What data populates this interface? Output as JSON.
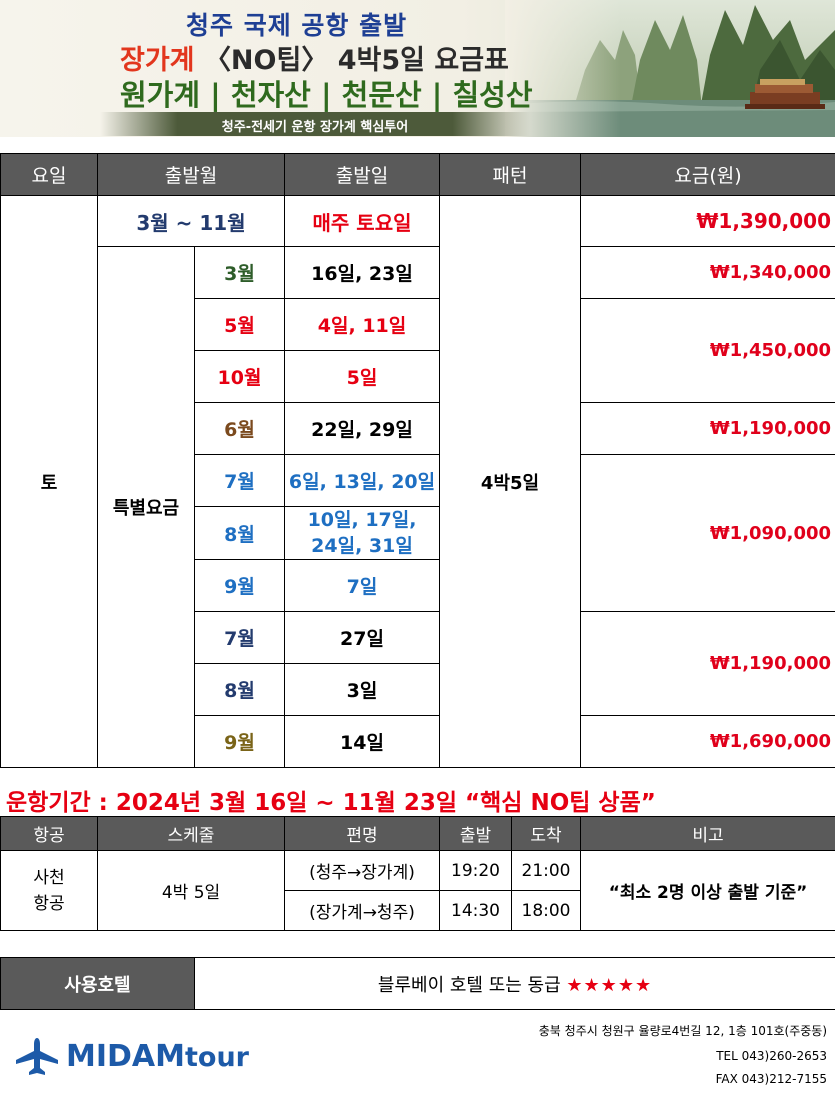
{
  "banner": {
    "line1": "청주 국제 공항 출발",
    "line2_red": "장가계",
    "line2_dark": "〈NO팁〉 4박5일 요금표",
    "line3": "원가계 | 천자산 | 천문산 | 칠성산",
    "ribbon": "청주-전세기 운항 장가계 핵심투어"
  },
  "fare_table": {
    "headers": [
      "요일",
      "출발월",
      "출발일",
      "패턴",
      "요금(원)"
    ],
    "day": "토",
    "pattern": "4박5일",
    "regular": {
      "months": "3월 ~ 11월",
      "dates": "매주 토요일",
      "price": "₩1,390,000"
    },
    "special_label": "특별요금",
    "rows": [
      {
        "month": "3월",
        "dates": "16일, 23일"
      },
      {
        "month": "5월",
        "dates": "4일, 11일"
      },
      {
        "month": "10월",
        "dates": "5일"
      },
      {
        "month": "6월",
        "dates": "22일, 29일"
      },
      {
        "month": "7월",
        "dates": "6일, 13일, 20일"
      },
      {
        "month": "8월",
        "dates": "10일, 17일, 24일, 31일"
      },
      {
        "month": "9월",
        "dates": "7일"
      },
      {
        "month": "7월",
        "dates": "27일"
      },
      {
        "month": "8월",
        "dates": "3일"
      },
      {
        "month": "9월",
        "dates": "14일"
      }
    ],
    "prices": [
      "₩1,340,000",
      "₩1,450,000",
      "₩1,190,000",
      "₩1,090,000",
      "₩1,190,000",
      "₩1,690,000"
    ]
  },
  "period_text": "운항기간 : 2024년 3월 16일 ~ 11월 23일 “핵심 NO팁 상품”",
  "flight_table": {
    "headers": [
      "항공",
      "스케줄",
      "편명",
      "출발",
      "도착",
      "비고"
    ],
    "airline_line1": "사천",
    "airline_line2": "항공",
    "schedule": "4박 5일",
    "flights": [
      {
        "route": "(청주→장가계)",
        "depart": "19:20",
        "arrive": "21:00"
      },
      {
        "route": "(장가계→청주)",
        "depart": "14:30",
        "arrive": "18:00"
      }
    ],
    "note": "“최소 2명 이상 출발 기준”"
  },
  "hotel": {
    "label": "사용호텔",
    "value": "블루베이 호텔 또는 동급",
    "stars": "★★★★★"
  },
  "footer": {
    "logo_main": "MIDAM",
    "logo_suffix": "tour",
    "address": "충북 청주시 청원구 율량로4번길 12, 1층 101호(주중동)",
    "tel": "TEL 043)260-2653",
    "fax": "FAX 043)212-7155"
  },
  "colors": {
    "header_bg": "#5a5a5a",
    "price_red": "#e0001b",
    "accent_blue": "#1e6fc2",
    "logo_blue": "#1d5aa8"
  }
}
